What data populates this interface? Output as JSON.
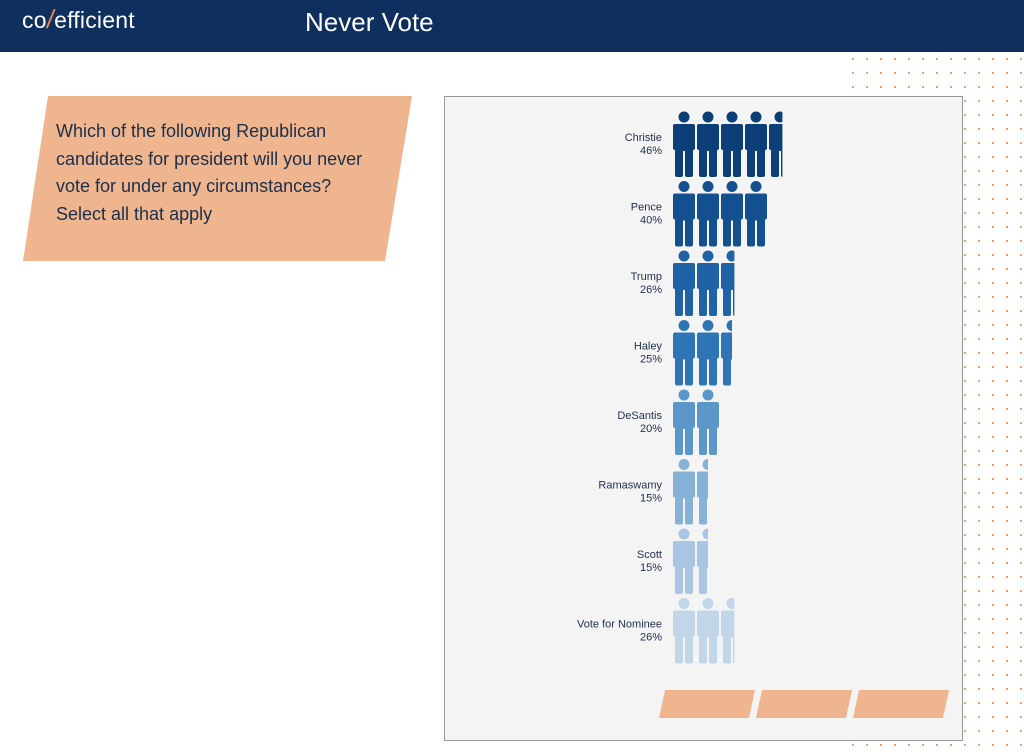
{
  "header": {
    "logo_left": "co",
    "logo_slash": "/",
    "logo_right": "efficient",
    "title": "Never Vote"
  },
  "question": {
    "text": "Which of the following Republican candidates for president will you never vote for under any circumstances? Select all that apply"
  },
  "colors": {
    "header_bg": "#0f2f5e",
    "accent_orange": "#efb58f",
    "dot_orange": "#f08a45"
  },
  "chart_data": {
    "type": "pictogram-bar",
    "unit_percent_per_icon": 10,
    "categories": [
      "Christie",
      "Pence",
      "Trump",
      "Haley",
      "DeSantis",
      "Ramaswamy",
      "Scott",
      "Vote for Nominee"
    ],
    "value_labels": [
      "46%",
      "40%",
      "26%",
      "25%",
      "20%",
      "15%",
      "15%",
      "26%"
    ],
    "values": [
      46,
      40,
      26,
      25,
      20,
      15,
      15,
      26
    ],
    "series_colors": [
      "#0c3e78",
      "#14508f",
      "#1f63a6",
      "#2f75b6",
      "#5c97c9",
      "#86b2d8",
      "#a8c6e3",
      "#c2d6ea"
    ]
  }
}
